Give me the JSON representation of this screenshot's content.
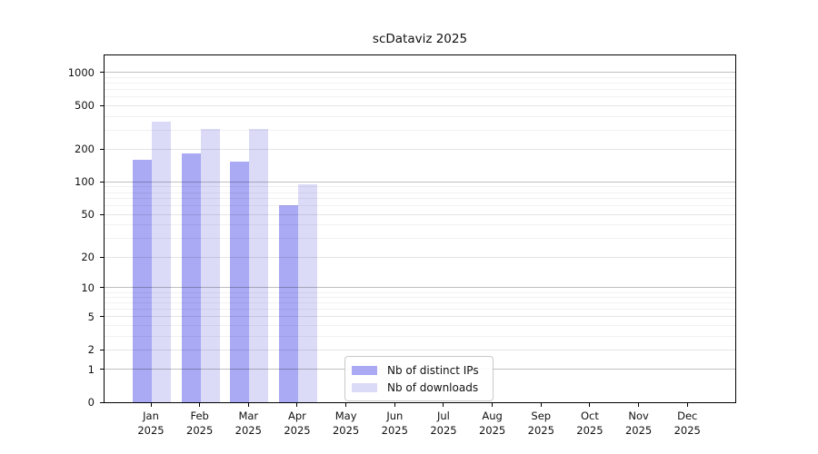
{
  "chart_data": {
    "type": "bar",
    "title": "scDataviz 2025",
    "year_label": "2025",
    "categories": [
      "Jan",
      "Feb",
      "Mar",
      "Apr",
      "May",
      "Jun",
      "Jul",
      "Aug",
      "Sep",
      "Oct",
      "Nov",
      "Dec"
    ],
    "series": [
      {
        "name": "Nb of distinct IPs",
        "color": "#a9a9f4",
        "values": [
          160,
          184,
          154,
          61,
          0,
          0,
          0,
          0,
          0,
          0,
          0,
          0
        ]
      },
      {
        "name": "Nb of downloads",
        "color": "#dbdbf8",
        "values": [
          358,
          306,
          308,
          95,
          0,
          0,
          0,
          0,
          0,
          0,
          0,
          0
        ]
      }
    ],
    "yscale": "log1p",
    "ylim": [
      0,
      1400
    ],
    "yticks": [
      0,
      1,
      2,
      5,
      10,
      20,
      50,
      100,
      200,
      500,
      1000
    ],
    "xlabel": "",
    "ylabel": "",
    "grid": "horizontal-log",
    "legend_position": "bottom-center"
  }
}
